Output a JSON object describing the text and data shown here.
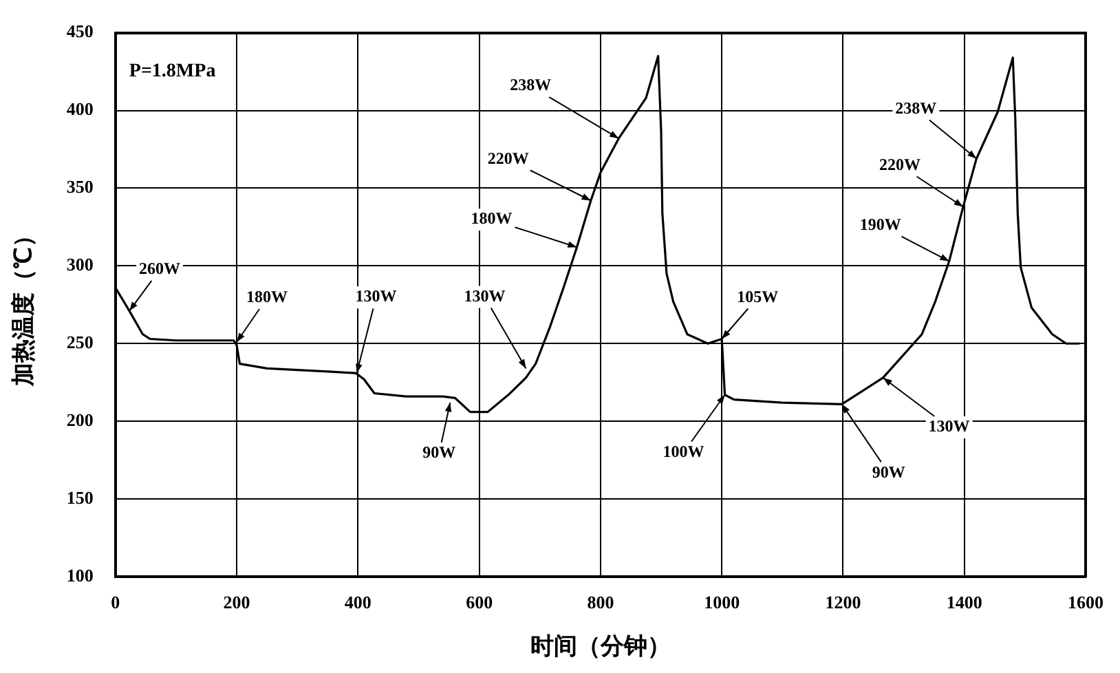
{
  "chart_data": {
    "type": "line",
    "xlabel": "时间（分钟）",
    "ylabel": "加热温度（℃）",
    "xlim": [
      0,
      1600
    ],
    "xticks": [
      0,
      200,
      400,
      600,
      800,
      1000,
      1200,
      1400,
      1600
    ],
    "ylim": [
      100,
      450
    ],
    "yticks": [
      100,
      150,
      200,
      250,
      300,
      350,
      400,
      450
    ],
    "grid": true,
    "legend": false,
    "marker": "none",
    "line_style": "solid",
    "series": [
      {
        "color": "#000000",
        "x": [
          0,
          23,
          45,
          57,
          100,
          150,
          195,
          200,
          205,
          250,
          300,
          350,
          395,
          400,
          410,
          427,
          480,
          540,
          560,
          585,
          614,
          648,
          677,
          693,
          716,
          739,
          761,
          784,
          800,
          830,
          875,
          895,
          900,
          902,
          909,
          920,
          943,
          977,
          1000,
          1005,
          1020,
          1100,
          1198,
          1266,
          1330,
          1352,
          1375,
          1398,
          1420,
          1455,
          1480,
          1484,
          1488,
          1493,
          1511,
          1545,
          1568,
          1590
        ],
        "values": [
          286,
          271,
          256,
          253,
          252,
          252,
          252,
          249,
          237,
          234,
          233,
          232,
          231,
          230,
          227,
          218,
          216,
          216,
          215,
          206,
          206,
          217,
          228,
          237,
          260,
          286,
          312,
          342,
          360,
          382,
          408,
          435,
          386,
          334,
          295,
          277,
          256,
          250,
          253,
          217,
          214,
          212,
          211,
          228,
          256,
          277,
          303,
          338,
          369,
          399,
          434,
          395,
          334,
          299,
          273,
          256,
          250,
          250
        ]
      }
    ],
    "annotations": [
      "P=1.8MPa",
      {
        "text": "260W",
        "x": 23,
        "y": 271
      },
      {
        "text": "180W",
        "x": 200,
        "y": 251
      },
      {
        "text": "130W",
        "x": 398,
        "y": 231
      },
      {
        "text": "90W",
        "x": 552,
        "y": 212
      },
      {
        "text": "130W",
        "x": 677,
        "y": 234
      },
      {
        "text": "180W",
        "x": 761,
        "y": 312
      },
      {
        "text": "220W",
        "x": 784,
        "y": 342
      },
      {
        "text": "238W",
        "x": 830,
        "y": 382
      },
      {
        "text": "105W",
        "x": 1000,
        "y": 253
      },
      {
        "text": "100W",
        "x": 1005,
        "y": 217
      },
      {
        "text": "90W",
        "x": 1198,
        "y": 211
      },
      {
        "text": "130W",
        "x": 1266,
        "y": 228
      },
      {
        "text": "190W",
        "x": 1375,
        "y": 303
      },
      {
        "text": "220W",
        "x": 1398,
        "y": 338
      },
      {
        "text": "238W",
        "x": 1420,
        "y": 369
      }
    ]
  }
}
